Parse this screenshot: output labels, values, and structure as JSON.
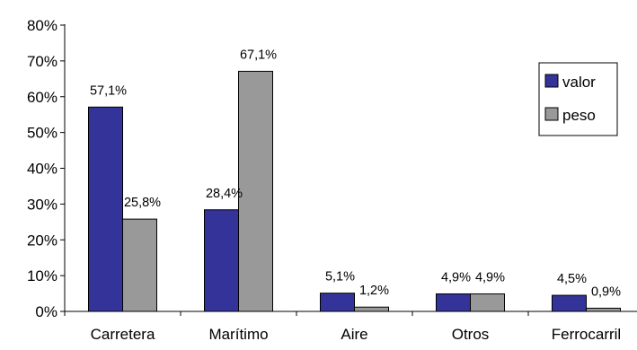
{
  "chart_data": {
    "type": "bar",
    "title": "",
    "xlabel": "",
    "ylabel": "",
    "categories": [
      "Carretera",
      "Marítimo",
      "Aire",
      "Otros",
      "Ferrocarril"
    ],
    "series": [
      {
        "name": "valor",
        "color": "#333399",
        "values": [
          57.1,
          28.4,
          5.1,
          4.9,
          4.5
        ],
        "labels": [
          "57,1%",
          "28,4%",
          "5,1%",
          "4,9%",
          "4,5%"
        ]
      },
      {
        "name": "peso",
        "color": "#999999",
        "values": [
          25.8,
          67.1,
          1.2,
          4.9,
          0.9
        ],
        "labels": [
          "25,8%",
          "67,1%",
          "1,2%",
          "4,9%",
          "0,9%"
        ]
      }
    ],
    "ylim": [
      0,
      80
    ],
    "yticks": [
      0,
      10,
      20,
      30,
      40,
      50,
      60,
      70,
      80
    ],
    "ytick_labels": [
      "0%",
      "10%",
      "20%",
      "30%",
      "40%",
      "50%",
      "60%",
      "70%",
      "80%"
    ],
    "grid": false,
    "legend_position": "top-right"
  }
}
